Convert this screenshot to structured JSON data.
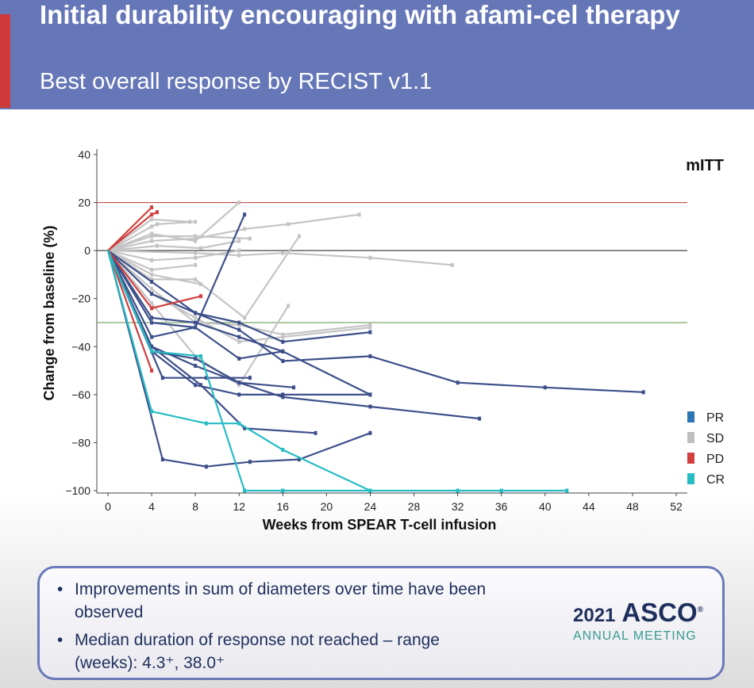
{
  "header": {
    "title": "Initial durability encouraging with afami-cel therapy",
    "subtitle": "Best overall response by RECIST v1.1"
  },
  "chart_data": {
    "type": "line",
    "title": "",
    "panel_label": "mITT",
    "xlabel": "Weeks from SPEAR T-cell infusion",
    "ylabel": "Change from baseline (%)",
    "xlim": [
      -1,
      53
    ],
    "ylim": [
      -101,
      41
    ],
    "xticks": [
      0,
      4,
      8,
      12,
      16,
      20,
      24,
      28,
      32,
      36,
      40,
      44,
      48,
      52
    ],
    "yticks": [
      40,
      20,
      0,
      -20,
      -40,
      -60,
      -80,
      -100
    ],
    "ytick_labels": [
      "40",
      "20",
      "0",
      "−20",
      "−40",
      "−60",
      "−80",
      "−100"
    ],
    "reference_lines": [
      {
        "y": 20,
        "color": "#c0504d"
      },
      {
        "y": 0,
        "color": "#444444"
      },
      {
        "y": -30,
        "color": "#77a86a"
      }
    ],
    "legend": {
      "position": "right",
      "items": [
        {
          "label": "PR",
          "color": "#2e75b6"
        },
        {
          "label": "SD",
          "color": "#bfbfbf"
        },
        {
          "label": "PD",
          "color": "#d13f3f"
        },
        {
          "label": "CR",
          "color": "#26bcc4"
        }
      ]
    },
    "colors": {
      "PR": "#3d4f8a",
      "SD": "#c4c4c4",
      "PD": "#d13f3f",
      "CR": "#26bcc4"
    },
    "series": [
      {
        "response": "SD",
        "points": [
          [
            0,
            0
          ],
          [
            4,
            10
          ],
          [
            4.5,
            11
          ],
          [
            8,
            12
          ]
        ]
      },
      {
        "response": "SD",
        "points": [
          [
            0,
            0
          ],
          [
            4,
            4
          ],
          [
            8,
            5
          ],
          [
            12.5,
            9
          ],
          [
            16.5,
            11
          ],
          [
            23,
            15
          ]
        ]
      },
      {
        "response": "SD",
        "points": [
          [
            0,
            0
          ],
          [
            4,
            6
          ],
          [
            8,
            6
          ],
          [
            13,
            5
          ]
        ]
      },
      {
        "response": "SD",
        "points": [
          [
            0,
            0
          ],
          [
            4.5,
            2
          ],
          [
            8.5,
            1
          ],
          [
            12,
            4
          ]
        ]
      },
      {
        "response": "SD",
        "points": [
          [
            0,
            0
          ],
          [
            4,
            7
          ],
          [
            8,
            4
          ],
          [
            12,
            20
          ]
        ]
      },
      {
        "response": "SD",
        "points": [
          [
            0,
            0
          ],
          [
            4,
            13
          ],
          [
            7.5,
            12
          ]
        ]
      },
      {
        "response": "SD",
        "points": [
          [
            0,
            0
          ],
          [
            8,
            -1
          ],
          [
            12,
            -2
          ],
          [
            16,
            -1
          ],
          [
            24,
            -3
          ],
          [
            31.5,
            -6
          ]
        ]
      },
      {
        "response": "SD",
        "points": [
          [
            0,
            0
          ],
          [
            4,
            -4
          ],
          [
            8,
            -3
          ],
          [
            12,
            0
          ]
        ]
      },
      {
        "response": "SD",
        "points": [
          [
            0,
            0
          ],
          [
            4,
            -8
          ],
          [
            8,
            -6
          ]
        ]
      },
      {
        "response": "SD",
        "points": [
          [
            0,
            0
          ],
          [
            4,
            -10
          ],
          [
            8.5,
            -14
          ]
        ]
      },
      {
        "response": "SD",
        "points": [
          [
            0,
            0
          ],
          [
            4,
            -12
          ],
          [
            8,
            -12
          ],
          [
            12.5,
            -28
          ],
          [
            17.5,
            6
          ]
        ]
      },
      {
        "response": "SD",
        "points": [
          [
            0,
            0
          ],
          [
            4,
            -16
          ],
          [
            8,
            -30
          ],
          [
            12,
            -31
          ],
          [
            16,
            -35
          ],
          [
            24,
            -31
          ]
        ]
      },
      {
        "response": "SD",
        "points": [
          [
            0,
            0
          ],
          [
            4,
            -22
          ],
          [
            8,
            -44
          ],
          [
            12,
            -56
          ],
          [
            16.5,
            -23
          ]
        ]
      },
      {
        "response": "SD",
        "points": [
          [
            0,
            0
          ],
          [
            4,
            -18
          ],
          [
            8,
            -28
          ],
          [
            12,
            -38
          ],
          [
            16,
            -36
          ],
          [
            24,
            -32
          ]
        ]
      },
      {
        "response": "PD",
        "points": [
          [
            0,
            0
          ],
          [
            4,
            18
          ]
        ]
      },
      {
        "response": "PD",
        "points": [
          [
            0,
            0
          ],
          [
            4,
            15
          ],
          [
            4.5,
            16
          ]
        ]
      },
      {
        "response": "PD",
        "points": [
          [
            0,
            0
          ],
          [
            4,
            -24
          ],
          [
            8.5,
            -19
          ]
        ]
      },
      {
        "response": "PD",
        "points": [
          [
            0,
            0
          ],
          [
            4,
            -50
          ]
        ]
      },
      {
        "response": "PR",
        "points": [
          [
            0,
            0
          ],
          [
            4,
            -13
          ],
          [
            8,
            -26
          ],
          [
            12,
            -30
          ],
          [
            16,
            -38
          ],
          [
            24,
            -34
          ]
        ]
      },
      {
        "response": "PR",
        "points": [
          [
            0,
            0
          ],
          [
            4,
            -18
          ],
          [
            8,
            -26
          ],
          [
            12,
            -33
          ],
          [
            16,
            -46
          ],
          [
            24,
            -44
          ],
          [
            32,
            -55
          ],
          [
            40,
            -57
          ],
          [
            49,
            -59
          ]
        ]
      },
      {
        "response": "PR",
        "points": [
          [
            0,
            0
          ],
          [
            4,
            -28
          ],
          [
            8,
            -30
          ],
          [
            12,
            -36
          ],
          [
            16,
            -42
          ],
          [
            24,
            -60
          ]
        ]
      },
      {
        "response": "PR",
        "points": [
          [
            0,
            0
          ],
          [
            4,
            -30
          ],
          [
            8,
            -32
          ],
          [
            12,
            -45
          ],
          [
            16,
            -42
          ]
        ]
      },
      {
        "response": "PR",
        "points": [
          [
            0,
            0
          ],
          [
            4,
            -36
          ],
          [
            8,
            -32
          ],
          [
            12.5,
            15
          ]
        ]
      },
      {
        "response": "PR",
        "points": [
          [
            0,
            0
          ],
          [
            4,
            -40
          ],
          [
            8,
            -48
          ],
          [
            12,
            -55
          ],
          [
            17,
            -57
          ]
        ]
      },
      {
        "response": "PR",
        "points": [
          [
            0,
            0
          ],
          [
            4,
            -42
          ],
          [
            8,
            -56
          ],
          [
            12,
            -60
          ],
          [
            16,
            -60
          ],
          [
            24,
            -60
          ]
        ]
      },
      {
        "response": "PR",
        "points": [
          [
            0,
            0
          ],
          [
            4,
            -42
          ],
          [
            8,
            -45
          ],
          [
            12,
            -55
          ],
          [
            16,
            -61
          ],
          [
            24,
            -65
          ],
          [
            34,
            -70
          ]
        ]
      },
      {
        "response": "PR",
        "points": [
          [
            0,
            0
          ],
          [
            5,
            -53
          ],
          [
            9,
            -53
          ],
          [
            13,
            -53
          ]
        ]
      },
      {
        "response": "PR",
        "points": [
          [
            0,
            0
          ],
          [
            4,
            -40
          ],
          [
            8.5,
            -56
          ],
          [
            12.5,
            -74
          ],
          [
            19,
            -76
          ]
        ]
      },
      {
        "response": "PR",
        "points": [
          [
            0,
            0
          ],
          [
            5,
            -87
          ],
          [
            9,
            -90
          ],
          [
            13,
            -88
          ],
          [
            17.5,
            -87
          ],
          [
            24,
            -76
          ]
        ]
      },
      {
        "response": "CR",
        "points": [
          [
            0,
            0
          ],
          [
            4,
            -67
          ],
          [
            9,
            -72
          ],
          [
            12,
            -72
          ],
          [
            16,
            -83
          ],
          [
            24,
            -100
          ],
          [
            32,
            -100
          ],
          [
            36,
            -100
          ],
          [
            42,
            -100
          ]
        ]
      },
      {
        "response": "CR",
        "points": [
          [
            0,
            0
          ],
          [
            4,
            -42
          ],
          [
            8.5,
            -44
          ],
          [
            12.5,
            -100
          ],
          [
            16,
            -100
          ],
          [
            24,
            -100
          ]
        ]
      }
    ]
  },
  "infobox": {
    "bullets": [
      "Improvements in sum of diameters over time have been observed",
      "Median duration of response not reached – range (weeks): 4.3⁺, 38.0⁺"
    ],
    "bullet_glyph": "•",
    "logo": {
      "year": "2021",
      "name": "ASCO",
      "mark": "®",
      "sub": "ANNUAL MEETING"
    }
  }
}
